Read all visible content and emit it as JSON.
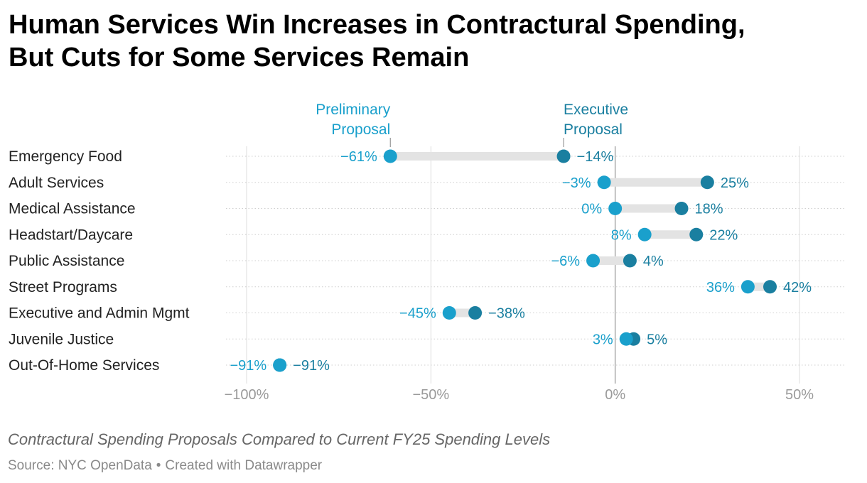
{
  "header": {
    "title_line1": "Human Services Win Increases in Contractural Spending,",
    "title_line2": "But Cuts for Some Services Remain"
  },
  "footer": {
    "description": "Contractural Spending Proposals Compared to Current FY25 Spending Levels",
    "source": "Source: NYC OpenData",
    "separator": "•",
    "credit": "Created with Datawrapper"
  },
  "colors": {
    "preliminary": "#1aa0cc",
    "executive": "#1a7fa0",
    "range_bar": "#e3e3e3",
    "grid": "#dddddd",
    "zero_line": "#aaaaaa",
    "tick_label": "#9a9a9a",
    "category_label": "#222222"
  },
  "chart_data": {
    "type": "dot-range",
    "xlim": [
      -105,
      62
    ],
    "xticks": [
      -100,
      -50,
      0,
      50
    ],
    "xtick_labels": [
      "−100%",
      "−50%",
      "0%",
      "50%"
    ],
    "grid": true,
    "series": [
      {
        "name": "Preliminary Proposal",
        "key": "preliminary"
      },
      {
        "name": "Executive Proposal",
        "key": "executive"
      }
    ],
    "series_label_lines": {
      "preliminary": [
        "Preliminary",
        "Proposal"
      ],
      "executive": [
        "Executive",
        "Proposal"
      ]
    },
    "rows": [
      {
        "category": "Emergency Food",
        "preliminary": -61,
        "executive": -14,
        "preliminary_label": "−61%",
        "executive_label": "−14%"
      },
      {
        "category": "Adult Services",
        "preliminary": -3,
        "executive": 25,
        "preliminary_label": "−3%",
        "executive_label": "25%"
      },
      {
        "category": "Medical Assistance",
        "preliminary": 0,
        "executive": 18,
        "preliminary_label": "0%",
        "executive_label": "18%"
      },
      {
        "category": "Headstart/Daycare",
        "preliminary": 8,
        "executive": 22,
        "preliminary_label": "8%",
        "executive_label": "22%"
      },
      {
        "category": "Public Assistance",
        "preliminary": -6,
        "executive": 4,
        "preliminary_label": "−6%",
        "executive_label": "4%"
      },
      {
        "category": "Street Programs",
        "preliminary": 36,
        "executive": 42,
        "preliminary_label": "36%",
        "executive_label": "42%"
      },
      {
        "category": "Executive and Admin Mgmt",
        "preliminary": -45,
        "executive": -38,
        "preliminary_label": "−45%",
        "executive_label": "−38%"
      },
      {
        "category": "Juvenile Justice",
        "preliminary": 3,
        "executive": 5,
        "preliminary_label": "3%",
        "executive_label": "5%"
      },
      {
        "category": "Out-Of-Home Services",
        "preliminary": -91,
        "executive": -91,
        "preliminary_label": "−91%",
        "executive_label": "−91%"
      }
    ]
  }
}
